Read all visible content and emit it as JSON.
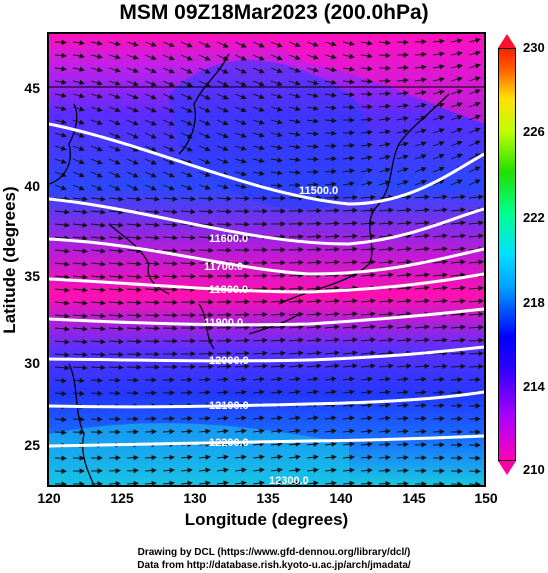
{
  "title": "MSM 09Z18Mar2023 (200.0hPa)",
  "x_axis": {
    "label": "Longitude (degrees)",
    "ticks": [
      "120",
      "125",
      "130",
      "135",
      "140",
      "145",
      "150"
    ],
    "range": [
      120,
      150
    ]
  },
  "y_axis": {
    "label": "Latitude  (degrees)",
    "ticks": [
      "25",
      "30",
      "35",
      "40",
      "45"
    ],
    "range": [
      22.4,
      47.6
    ]
  },
  "colorbar": {
    "ticks": [
      "210",
      "214",
      "218",
      "222",
      "226",
      "230"
    ],
    "range": [
      210,
      230
    ]
  },
  "contours": [
    "11500.0",
    "11600.0",
    "11700.0",
    "11800.0",
    "11900.0",
    "12000.0",
    "12100.0",
    "12200.0",
    "12300.0"
  ],
  "credits": {
    "line1": "Drawing by DCL (https://www.gfd-dennou.org/library/dcl/)",
    "line2": "Data from http://database.rish.kyoto-u.ac.jp/arch/jmadata/"
  },
  "colors": {
    "magenta": "#ff10b8",
    "purple": "#7a1cff",
    "blue": "#1a2cff",
    "cyan": "#26c8e8",
    "contour": "#ffffff"
  }
}
